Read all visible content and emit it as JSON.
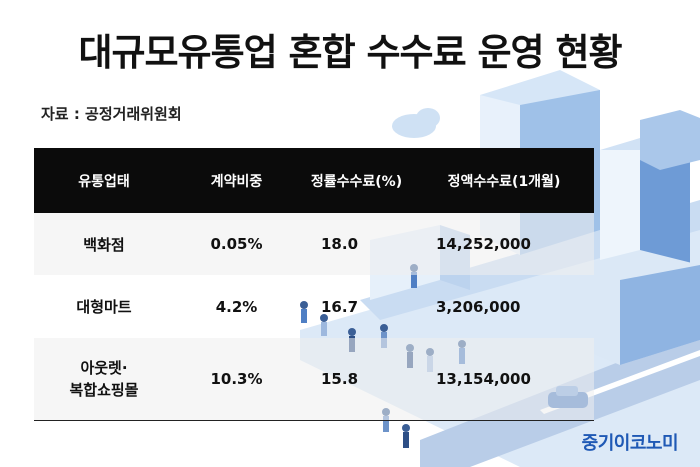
{
  "title": "대규모유통업 혼합 수수료 운영 현황",
  "source": "자료 : 공정거래위원회",
  "table": {
    "headers": [
      "유통업태",
      "계약비중",
      "정률수수료(%)",
      "정액수수료(1개월)"
    ],
    "rows": [
      {
        "type": "백화점",
        "share": "0.05%",
        "rate": "18.0",
        "fixed": "14,252,000"
      },
      {
        "type": "대형마트",
        "share": "4.2%",
        "rate": "16.7",
        "fixed": "3,206,000"
      },
      {
        "type_line1": "아웃렛·",
        "type_line2": "복합쇼핑몰",
        "share": "10.3%",
        "rate": "15.8",
        "fixed": "13,154,000"
      }
    ]
  },
  "logo": "중기이코노미",
  "colors": {
    "header_bg": "#0b0b0b",
    "logo": "#1f59b5",
    "city_base": "#dce8f6"
  }
}
